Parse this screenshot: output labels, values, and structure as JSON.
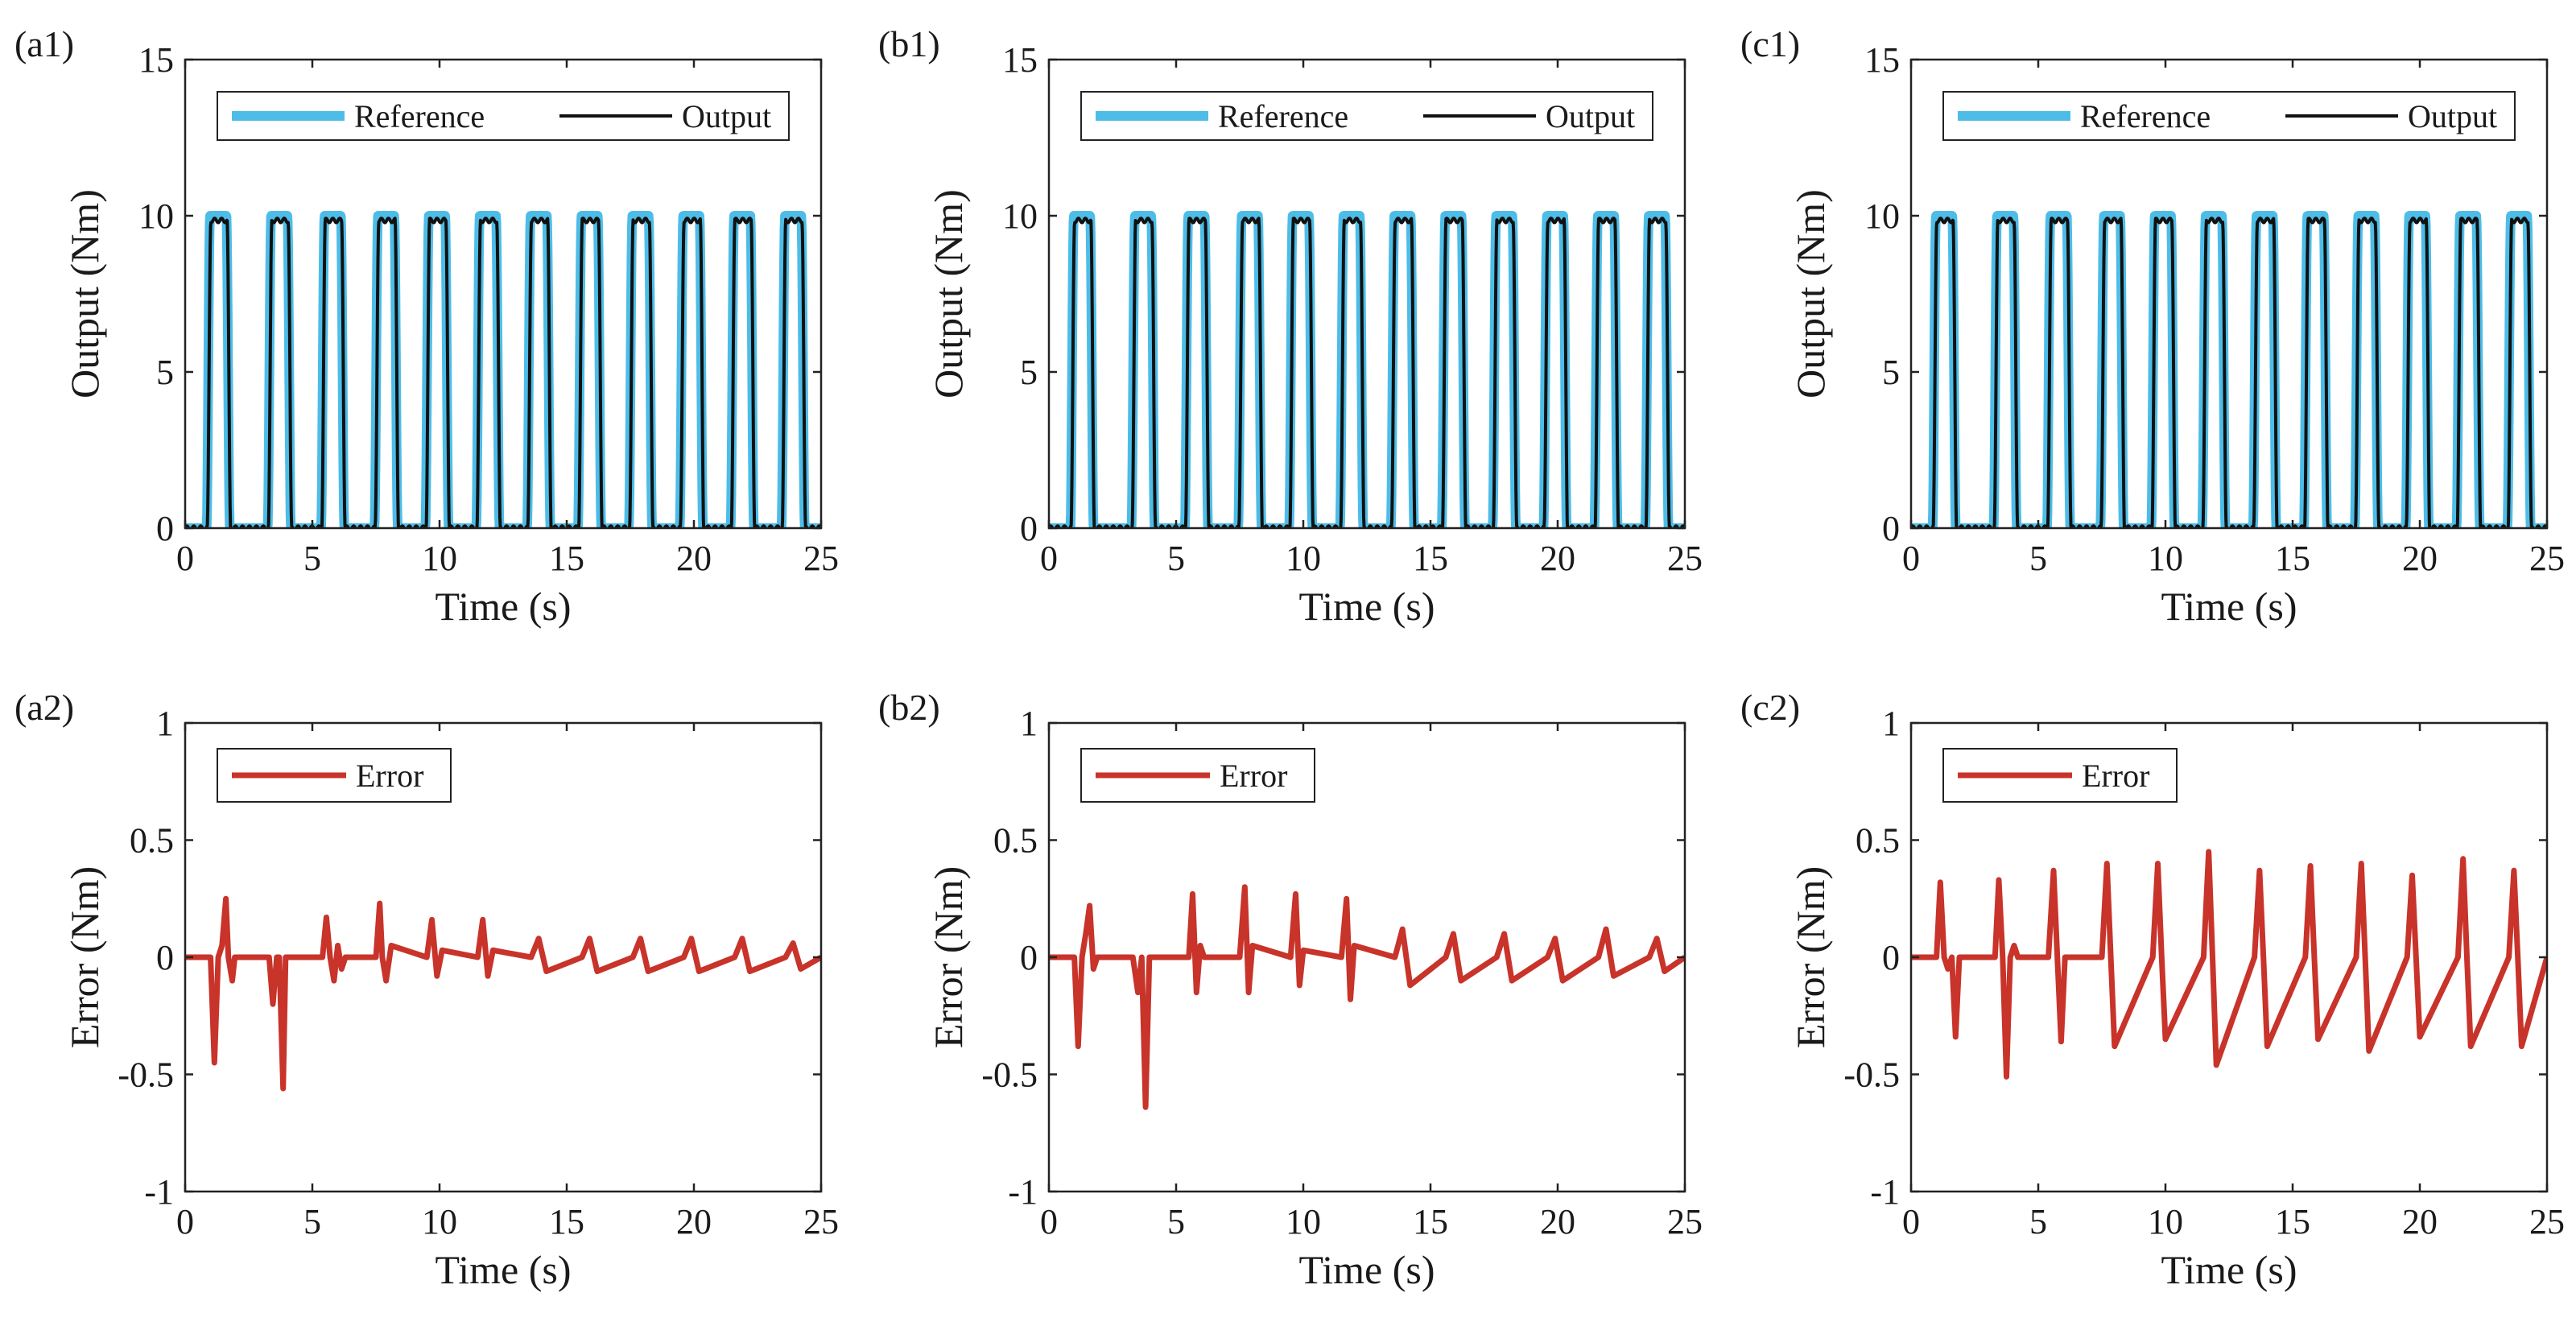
{
  "colors": {
    "reference": "#4dbde8",
    "output": "#111111",
    "error": "#c8332a",
    "axis": "#222222"
  },
  "chart_data": [
    {
      "id": "a1",
      "panel_label": "(a1)",
      "type": "line",
      "xlabel": "Time (s)",
      "ylabel": "Output (Nm)",
      "xlim": [
        0,
        25
      ],
      "ylim": [
        0,
        15
      ],
      "xticks": [
        0,
        5,
        10,
        15,
        20,
        25
      ],
      "yticks": [
        0,
        5,
        10,
        15
      ],
      "legend": [
        "Reference",
        "Output"
      ],
      "legend_position": "top",
      "series": [
        {
          "name": "Reference",
          "signal": "pulse_train",
          "peak": 10,
          "pulse_centers": [
            1.3,
            3.7,
            5.8,
            7.9,
            9.9,
            11.9,
            13.9,
            15.9,
            17.9,
            19.9,
            21.9,
            23.9
          ]
        },
        {
          "name": "Output",
          "signal": "pulse_train",
          "peak": 10,
          "pulse_centers": [
            1.3,
            3.7,
            5.8,
            7.9,
            9.9,
            11.9,
            13.9,
            15.9,
            17.9,
            19.9,
            21.9,
            23.9
          ]
        }
      ]
    },
    {
      "id": "b1",
      "panel_label": "(b1)",
      "type": "line",
      "xlabel": "Time (s)",
      "ylabel": "Output (Nm)",
      "xlim": [
        0,
        25
      ],
      "ylim": [
        0,
        15
      ],
      "xticks": [
        0,
        5,
        10,
        15,
        20,
        25
      ],
      "yticks": [
        0,
        5,
        10,
        15
      ],
      "legend": [
        "Reference",
        "Output"
      ],
      "legend_position": "top",
      "series": [
        {
          "name": "Reference",
          "signal": "pulse_train",
          "peak": 10,
          "pulse_centers": [
            1.3,
            3.7,
            5.8,
            7.9,
            9.9,
            11.9,
            13.9,
            15.9,
            17.9,
            19.9,
            21.9,
            23.9
          ]
        },
        {
          "name": "Output",
          "signal": "pulse_train",
          "peak": 10,
          "pulse_centers": [
            1.3,
            3.7,
            5.8,
            7.9,
            9.9,
            11.9,
            13.9,
            15.9,
            17.9,
            19.9,
            21.9,
            23.9
          ]
        }
      ]
    },
    {
      "id": "c1",
      "panel_label": "(c1)",
      "type": "line",
      "xlabel": "Time (s)",
      "ylabel": "Output (Nm)",
      "xlim": [
        0,
        25
      ],
      "ylim": [
        0,
        15
      ],
      "xticks": [
        0,
        5,
        10,
        15,
        20,
        25
      ],
      "yticks": [
        0,
        5,
        10,
        15
      ],
      "legend": [
        "Reference",
        "Output"
      ],
      "legend_position": "top",
      "series": [
        {
          "name": "Reference",
          "signal": "pulse_train",
          "peak": 10,
          "pulse_centers": [
            1.3,
            3.7,
            5.8,
            7.9,
            9.9,
            11.9,
            13.9,
            15.9,
            17.9,
            19.9,
            21.9,
            23.9
          ]
        },
        {
          "name": "Output",
          "signal": "pulse_train",
          "peak": 10,
          "pulse_centers": [
            1.3,
            3.7,
            5.8,
            7.9,
            9.9,
            11.9,
            13.9,
            15.9,
            17.9,
            19.9,
            21.9,
            23.9
          ]
        }
      ]
    },
    {
      "id": "a2",
      "panel_label": "(a2)",
      "type": "line",
      "xlabel": "Time (s)",
      "ylabel": "Error (Nm)",
      "xlim": [
        0,
        25
      ],
      "ylim": [
        -1,
        1
      ],
      "xticks": [
        0,
        5,
        10,
        15,
        20,
        25
      ],
      "yticks": [
        -1,
        -0.5,
        0,
        0.5,
        1
      ],
      "legend": [
        "Error"
      ],
      "legend_position": "top-left",
      "series": [
        {
          "name": "Error",
          "x": [
            0,
            0.9,
            1.0,
            1.15,
            1.3,
            1.45,
            1.6,
            1.7,
            1.85,
            1.95,
            2.2,
            3.3,
            3.45,
            3.6,
            3.7,
            3.85,
            3.95,
            4.05,
            4.2,
            5.4,
            5.55,
            5.7,
            5.85,
            6.0,
            6.15,
            6.3,
            7.5,
            7.65,
            7.75,
            7.9,
            8.1,
            9.5,
            9.7,
            9.9,
            10.1,
            11.5,
            11.7,
            11.9,
            12.1,
            13.6,
            13.9,
            14.2,
            15.6,
            15.9,
            16.2,
            17.6,
            17.9,
            18.2,
            19.6,
            19.9,
            20.2,
            21.6,
            21.9,
            22.2,
            23.6,
            23.9,
            24.2,
            25
          ],
          "y": [
            0,
            0,
            0,
            -0.45,
            0,
            0.05,
            0.25,
            0.0,
            -0.1,
            0,
            0,
            0,
            -0.2,
            0.0,
            0.0,
            -0.56,
            0.0,
            0.0,
            0,
            0,
            0.17,
            0.0,
            -0.1,
            0.05,
            -0.05,
            0,
            0,
            0.23,
            0.0,
            -0.1,
            0.05,
            0,
            0.16,
            -0.08,
            0.03,
            0,
            0.16,
            -0.08,
            0.03,
            0,
            0.08,
            -0.06,
            0,
            0.08,
            -0.06,
            0,
            0.08,
            -0.06,
            0,
            0.08,
            -0.06,
            0,
            0.08,
            -0.06,
            0,
            0.06,
            -0.05,
            0
          ]
        }
      ]
    },
    {
      "id": "b2",
      "panel_label": "(b2)",
      "type": "line",
      "xlabel": "Time (s)",
      "ylabel": "Error (Nm)",
      "xlim": [
        0,
        25
      ],
      "ylim": [
        -1,
        1
      ],
      "xticks": [
        0,
        5,
        10,
        15,
        20,
        25
      ],
      "yticks": [
        -1,
        -0.5,
        0,
        0.5,
        1
      ],
      "legend": [
        "Error"
      ],
      "legend_position": "top-left",
      "series": [
        {
          "name": "Error",
          "x": [
            0,
            0.9,
            1.0,
            1.15,
            1.3,
            1.45,
            1.6,
            1.75,
            1.9,
            2.2,
            3.3,
            3.5,
            3.65,
            3.8,
            3.95,
            4.1,
            4.3,
            5.5,
            5.65,
            5.8,
            5.95,
            6.1,
            7.5,
            7.7,
            7.85,
            8.0,
            9.5,
            9.7,
            9.85,
            10.0,
            11.5,
            11.7,
            11.85,
            12.0,
            13.6,
            13.9,
            14.2,
            15.6,
            15.9,
            16.2,
            17.6,
            17.9,
            18.2,
            19.6,
            19.9,
            20.2,
            21.6,
            21.9,
            22.2,
            23.6,
            23.9,
            24.2,
            25
          ],
          "y": [
            0,
            0,
            0,
            -0.38,
            0.0,
            0.1,
            0.22,
            -0.05,
            0.0,
            0,
            0,
            -0.15,
            0.0,
            -0.64,
            0.0,
            0.0,
            0,
            0,
            0.27,
            -0.15,
            0.05,
            0,
            0,
            0.3,
            -0.15,
            0.05,
            0,
            0.27,
            -0.12,
            0.03,
            0,
            0.25,
            -0.18,
            0.05,
            0,
            0.12,
            -0.12,
            0,
            0.1,
            -0.1,
            0,
            0.1,
            -0.1,
            0,
            0.08,
            -0.1,
            0,
            0.12,
            -0.08,
            0,
            0.08,
            -0.06,
            0
          ]
        }
      ]
    },
    {
      "id": "c2",
      "panel_label": "(c2)",
      "type": "line",
      "xlabel": "Time (s)",
      "ylabel": "Error (Nm)",
      "xlim": [
        0,
        25
      ],
      "ylim": [
        -1,
        1
      ],
      "xticks": [
        0,
        5,
        10,
        15,
        20,
        25
      ],
      "yticks": [
        -1,
        -0.5,
        0,
        0.5,
        1
      ],
      "legend": [
        "Error"
      ],
      "legend_position": "top-left",
      "series": [
        {
          "name": "Error",
          "x": [
            0,
            0.9,
            1.0,
            1.15,
            1.3,
            1.45,
            1.6,
            1.75,
            1.9,
            2.2,
            3.3,
            3.45,
            3.6,
            3.75,
            3.9,
            4.05,
            4.2,
            5.4,
            5.6,
            5.75,
            5.9,
            6.05,
            7.5,
            7.7,
            7.85,
            8.0,
            9.5,
            9.7,
            9.85,
            10.0,
            11.5,
            11.7,
            11.85,
            12.0,
            13.5,
            13.7,
            13.85,
            14.0,
            15.5,
            15.7,
            15.85,
            16.0,
            17.5,
            17.7,
            17.85,
            18.0,
            19.5,
            19.7,
            19.85,
            20.0,
            21.5,
            21.7,
            21.85,
            22.0,
            23.5,
            23.7,
            23.85,
            24.0,
            25
          ],
          "y": [
            0,
            0,
            0,
            0.32,
            0.0,
            -0.05,
            0.0,
            -0.34,
            0.0,
            0,
            0,
            0.33,
            0.0,
            -0.51,
            0.0,
            0.05,
            0,
            0,
            0.37,
            0.0,
            -0.36,
            0,
            0,
            0.4,
            0.0,
            -0.38,
            0,
            0.4,
            0.0,
            -0.35,
            0,
            0.45,
            0.0,
            -0.46,
            0,
            0.37,
            0.0,
            -0.38,
            0,
            0.39,
            0.0,
            -0.35,
            0,
            0.4,
            0.0,
            -0.4,
            0,
            0.35,
            0.0,
            -0.34,
            0,
            0.42,
            0.0,
            -0.38,
            0,
            0.37,
            0.0,
            -0.38,
            0
          ]
        }
      ]
    }
  ]
}
